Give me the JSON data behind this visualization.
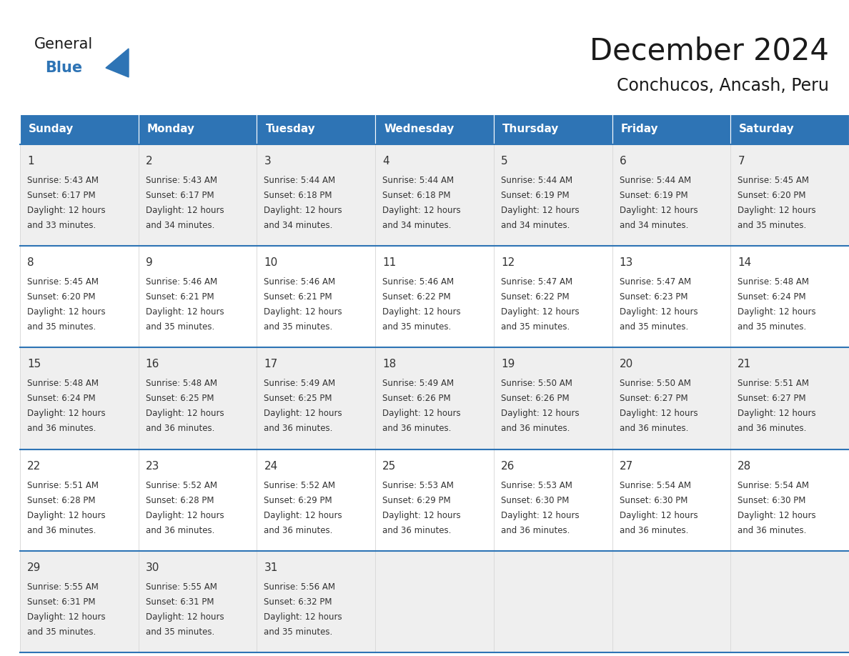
{
  "title": "December 2024",
  "subtitle": "Conchucos, Ancash, Peru",
  "days_of_week": [
    "Sunday",
    "Monday",
    "Tuesday",
    "Wednesday",
    "Thursday",
    "Friday",
    "Saturday"
  ],
  "header_bg": "#2E74B5",
  "header_text": "#FFFFFF",
  "row_bg_even": "#EFEFEF",
  "row_bg_odd": "#FFFFFF",
  "cell_border_color": "#2E74B5",
  "day_num_color": "#333333",
  "text_color": "#333333",
  "logo_general_color": "#1a1a1a",
  "logo_blue_color": "#2E74B5",
  "logo_triangle_color": "#2E74B5",
  "title_color": "#1a1a1a",
  "subtitle_color": "#1a1a1a",
  "calendar_data": [
    [
      {
        "day": 1,
        "sunrise": "5:43 AM",
        "sunset": "6:17 PM",
        "daylight": "12 hours and 33 minutes"
      },
      {
        "day": 2,
        "sunrise": "5:43 AM",
        "sunset": "6:17 PM",
        "daylight": "12 hours and 34 minutes"
      },
      {
        "day": 3,
        "sunrise": "5:44 AM",
        "sunset": "6:18 PM",
        "daylight": "12 hours and 34 minutes"
      },
      {
        "day": 4,
        "sunrise": "5:44 AM",
        "sunset": "6:18 PM",
        "daylight": "12 hours and 34 minutes"
      },
      {
        "day": 5,
        "sunrise": "5:44 AM",
        "sunset": "6:19 PM",
        "daylight": "12 hours and 34 minutes"
      },
      {
        "day": 6,
        "sunrise": "5:44 AM",
        "sunset": "6:19 PM",
        "daylight": "12 hours and 34 minutes"
      },
      {
        "day": 7,
        "sunrise": "5:45 AM",
        "sunset": "6:20 PM",
        "daylight": "12 hours and 35 minutes"
      }
    ],
    [
      {
        "day": 8,
        "sunrise": "5:45 AM",
        "sunset": "6:20 PM",
        "daylight": "12 hours and 35 minutes"
      },
      {
        "day": 9,
        "sunrise": "5:46 AM",
        "sunset": "6:21 PM",
        "daylight": "12 hours and 35 minutes"
      },
      {
        "day": 10,
        "sunrise": "5:46 AM",
        "sunset": "6:21 PM",
        "daylight": "12 hours and 35 minutes"
      },
      {
        "day": 11,
        "sunrise": "5:46 AM",
        "sunset": "6:22 PM",
        "daylight": "12 hours and 35 minutes"
      },
      {
        "day": 12,
        "sunrise": "5:47 AM",
        "sunset": "6:22 PM",
        "daylight": "12 hours and 35 minutes"
      },
      {
        "day": 13,
        "sunrise": "5:47 AM",
        "sunset": "6:23 PM",
        "daylight": "12 hours and 35 minutes"
      },
      {
        "day": 14,
        "sunrise": "5:48 AM",
        "sunset": "6:24 PM",
        "daylight": "12 hours and 35 minutes"
      }
    ],
    [
      {
        "day": 15,
        "sunrise": "5:48 AM",
        "sunset": "6:24 PM",
        "daylight": "12 hours and 36 minutes"
      },
      {
        "day": 16,
        "sunrise": "5:48 AM",
        "sunset": "6:25 PM",
        "daylight": "12 hours and 36 minutes"
      },
      {
        "day": 17,
        "sunrise": "5:49 AM",
        "sunset": "6:25 PM",
        "daylight": "12 hours and 36 minutes"
      },
      {
        "day": 18,
        "sunrise": "5:49 AM",
        "sunset": "6:26 PM",
        "daylight": "12 hours and 36 minutes"
      },
      {
        "day": 19,
        "sunrise": "5:50 AM",
        "sunset": "6:26 PM",
        "daylight": "12 hours and 36 minutes"
      },
      {
        "day": 20,
        "sunrise": "5:50 AM",
        "sunset": "6:27 PM",
        "daylight": "12 hours and 36 minutes"
      },
      {
        "day": 21,
        "sunrise": "5:51 AM",
        "sunset": "6:27 PM",
        "daylight": "12 hours and 36 minutes"
      }
    ],
    [
      {
        "day": 22,
        "sunrise": "5:51 AM",
        "sunset": "6:28 PM",
        "daylight": "12 hours and 36 minutes"
      },
      {
        "day": 23,
        "sunrise": "5:52 AM",
        "sunset": "6:28 PM",
        "daylight": "12 hours and 36 minutes"
      },
      {
        "day": 24,
        "sunrise": "5:52 AM",
        "sunset": "6:29 PM",
        "daylight": "12 hours and 36 minutes"
      },
      {
        "day": 25,
        "sunrise": "5:53 AM",
        "sunset": "6:29 PM",
        "daylight": "12 hours and 36 minutes"
      },
      {
        "day": 26,
        "sunrise": "5:53 AM",
        "sunset": "6:30 PM",
        "daylight": "12 hours and 36 minutes"
      },
      {
        "day": 27,
        "sunrise": "5:54 AM",
        "sunset": "6:30 PM",
        "daylight": "12 hours and 36 minutes"
      },
      {
        "day": 28,
        "sunrise": "5:54 AM",
        "sunset": "6:30 PM",
        "daylight": "12 hours and 36 minutes"
      }
    ],
    [
      {
        "day": 29,
        "sunrise": "5:55 AM",
        "sunset": "6:31 PM",
        "daylight": "12 hours and 35 minutes"
      },
      {
        "day": 30,
        "sunrise": "5:55 AM",
        "sunset": "6:31 PM",
        "daylight": "12 hours and 35 minutes"
      },
      {
        "day": 31,
        "sunrise": "5:56 AM",
        "sunset": "6:32 PM",
        "daylight": "12 hours and 35 minutes"
      },
      null,
      null,
      null,
      null
    ]
  ]
}
